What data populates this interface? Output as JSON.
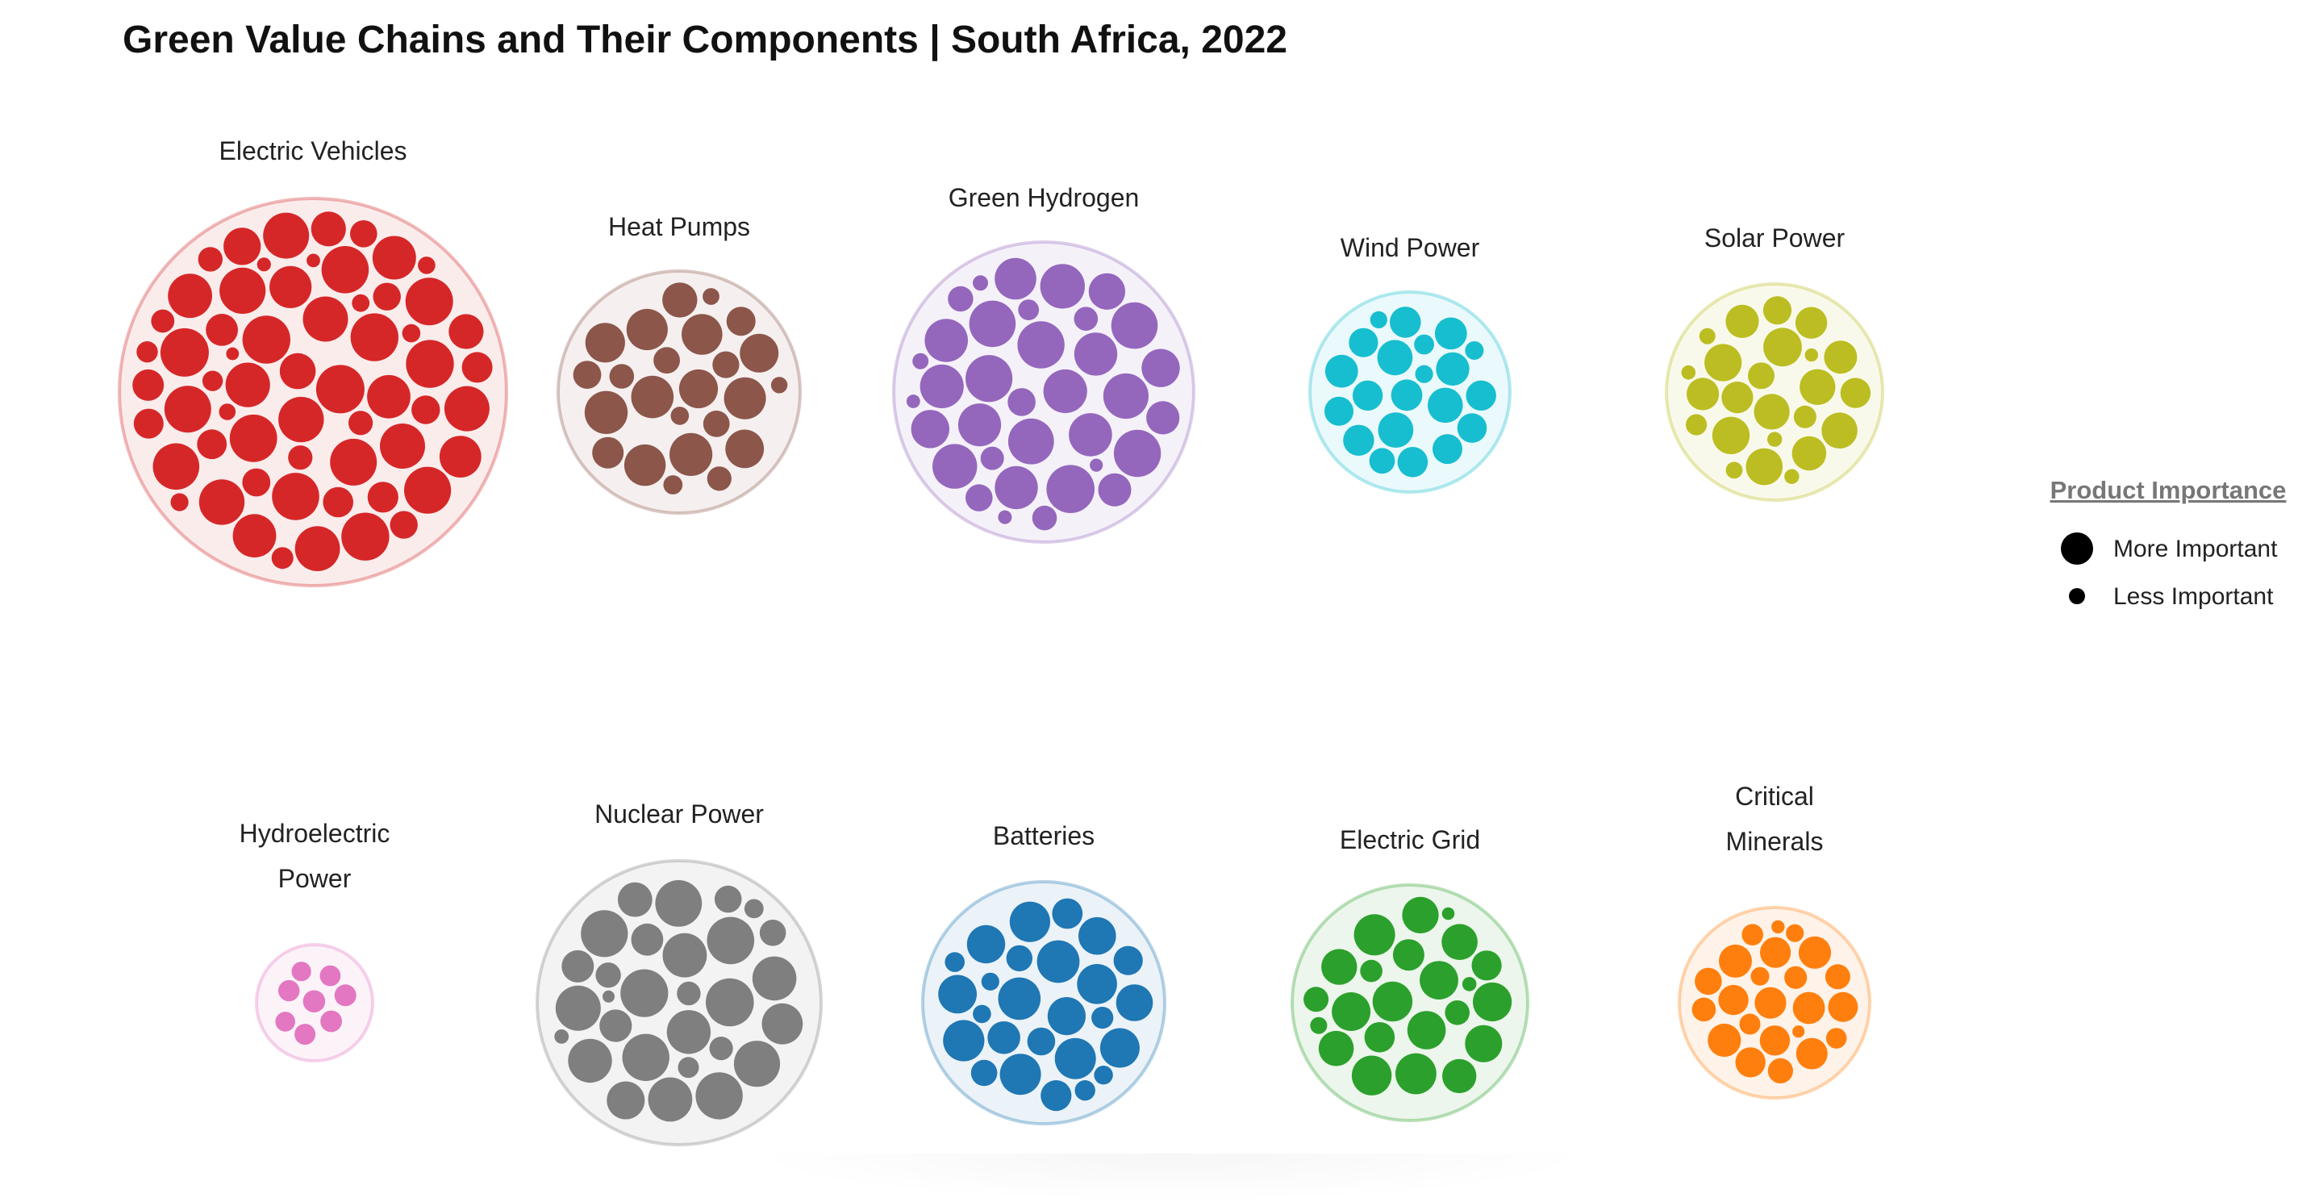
{
  "chart_data": {
    "type": "packed-bubble",
    "title": "Green Value Chains and Their Components | South Africa, 2022",
    "legend": {
      "title": "Product Importance",
      "placement": "right",
      "items": [
        {
          "label": "More Important",
          "size": "large"
        },
        {
          "label": "Less Important",
          "size": "small"
        }
      ]
    },
    "groups": [
      {
        "name": "Electric Vehicles",
        "label_lines": [
          "Electric Vehicles"
        ],
        "color": "#d62728",
        "relative_size": 1.0,
        "component_count": 110
      },
      {
        "name": "Heat Pumps",
        "label_lines": [
          "Heat Pumps"
        ],
        "color": "#8c564b",
        "relative_size": 0.62,
        "component_count": 38
      },
      {
        "name": "Green Hydrogen",
        "label_lines": [
          "Green Hydrogen"
        ],
        "color": "#9467bd",
        "relative_size": 0.77,
        "component_count": 62
      },
      {
        "name": "Wind Power",
        "label_lines": [
          "Wind Power"
        ],
        "color": "#17becf",
        "relative_size": 0.51,
        "component_count": 30
      },
      {
        "name": "Solar Power",
        "label_lines": [
          "Solar Power"
        ],
        "color": "#bcbd22",
        "relative_size": 0.55,
        "component_count": 32
      },
      {
        "name": "Hydroelectric Power",
        "label_lines": [
          "Hydroelectric",
          "Power"
        ],
        "color": "#e377c2",
        "relative_size": 0.3,
        "component_count": 8
      },
      {
        "name": "Nuclear Power",
        "label_lines": [
          "Nuclear Power"
        ],
        "color": "#7f7f7f",
        "relative_size": 0.73,
        "component_count": 48
      },
      {
        "name": "Batteries",
        "label_lines": [
          "Batteries"
        ],
        "color": "#1f77b4",
        "relative_size": 0.62,
        "component_count": 48
      },
      {
        "name": "Electric Grid",
        "label_lines": [
          "Electric Grid"
        ],
        "color": "#2ca02c",
        "relative_size": 0.6,
        "component_count": 42
      },
      {
        "name": "Critical Minerals",
        "label_lines": [
          "Critical",
          "Minerals"
        ],
        "color": "#ff7f0e",
        "relative_size": 0.49,
        "component_count": 34
      }
    ]
  }
}
